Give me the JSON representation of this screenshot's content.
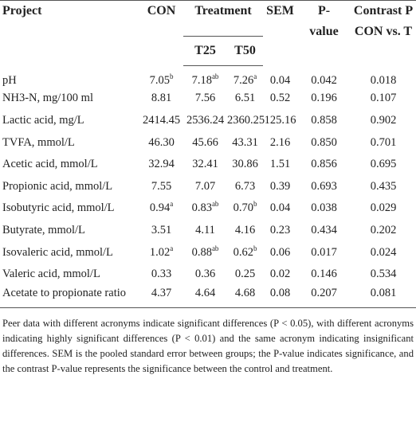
{
  "table": {
    "header": {
      "project": "Project",
      "con": "CON",
      "treatment": "Treatment",
      "t25": "T25",
      "t50": "T50",
      "sem": "SEM",
      "pvalue": "P-value",
      "contrast": "Contrast P CON vs. T"
    },
    "rows": [
      [
        "pH",
        {
          "text": "7.05",
          "sup": "b"
        },
        {
          "text": "7.18",
          "sup": "ab"
        },
        {
          "text": "7.26",
          "sup": "a"
        },
        "0.04",
        "0.042",
        "0.018"
      ],
      [
        "NH3-N, mg/100 ml",
        "8.81",
        "7.56",
        "6.51",
        "0.52",
        "0.196",
        "0.107"
      ],
      [
        "Lactic acid, mg/L",
        "2414.45",
        "2536.24",
        "2360.25",
        "125.16",
        "0.858",
        "0.902"
      ],
      [
        "TVFA, mmol/L",
        "46.30",
        "45.66",
        "43.31",
        "2.16",
        "0.850",
        "0.701"
      ],
      [
        "Acetic acid, mmol/L",
        "32.94",
        "32.41",
        "30.86",
        "1.51",
        "0.856",
        "0.695"
      ],
      [
        "Propionic acid, mmol/L",
        "7.55",
        "7.07",
        "6.73",
        "0.39",
        "0.693",
        "0.435"
      ],
      [
        "Isobutyric acid, mmol/L",
        {
          "text": "0.94",
          "sup": "a"
        },
        {
          "text": "0.83",
          "sup": "ab"
        },
        {
          "text": "0.70",
          "sup": "b"
        },
        "0.04",
        "0.038",
        "0.029"
      ],
      [
        "Butyrate, mmol/L",
        "3.51",
        "4.11",
        "4.16",
        "0.23",
        "0.434",
        "0.202"
      ],
      [
        "Isovaleric acid, mmol/L",
        {
          "text": "1.02",
          "sup": "a"
        },
        {
          "text": "0.88",
          "sup": "ab"
        },
        {
          "text": "0.62",
          "sup": "b"
        },
        "0.06",
        "0.017",
        "0.024"
      ],
      [
        "Valeric acid, mmol/L",
        "0.33",
        "0.36",
        "0.25",
        "0.02",
        "0.146",
        "0.534"
      ],
      [
        "Acetate to propionate ratio",
        "4.37",
        "4.64",
        "4.68",
        "0.08",
        "0.207",
        "0.081"
      ]
    ],
    "note": "Peer data with different acronyms indicate significant differences (P < 0.05), with different acronyms indicating highly significant differences (P < 0.01) and the same acronym indicating insignificant differences. SEM is the pooled standard error between groups; the P-value indicates significance, and the contrast P-value represents the significance between the control and treatment."
  }
}
